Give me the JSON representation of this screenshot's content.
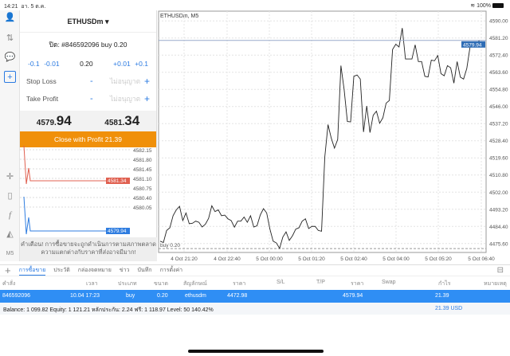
{
  "status_bar": {
    "time": "14:21",
    "date": "อา. 5 ต.ค.",
    "battery": "100%"
  },
  "order_panel": {
    "symbol": "ETHUSDm ▾",
    "order_title": "ปิด: #846592096 buy 0.20",
    "volume": {
      "minus_01": "-0.1",
      "minus_001": "-0.01",
      "value": "0.20",
      "plus_001": "+0.01",
      "plus_01": "+0.1"
    },
    "stop_loss": {
      "label": "Stop Loss",
      "minus": "-",
      "value": "ไม่อนุญาต",
      "plus": "+"
    },
    "take_profit": {
      "label": "Take Profit",
      "minus": "-",
      "value": "ไม่อนุญาต",
      "plus": "+"
    },
    "bid": {
      "main": "4579.",
      "big": "94"
    },
    "ask": {
      "main": "4581.",
      "big": "34"
    },
    "close_button": "Close with Profit 21.39",
    "tick_chart": {
      "axis": [
        "4582.15",
        "4581.80",
        "4581.45",
        "4581.10",
        "4580.75",
        "4580.40",
        "4580.05"
      ],
      "ask_label": "4581.34",
      "bid_label": "4579.94",
      "ask_color": "#e06050",
      "bid_color": "#2f7de0"
    },
    "warning": "คำเตือน! การซื้อขายจะถูกดำเนินการตามสภาพตลาด ความแตกต่างกับราคาที่ส่งอาจมีมาก!"
  },
  "left_toolbar": {
    "timeframe": "M5"
  },
  "chart_data": {
    "type": "line",
    "title": "ETHUSDm, M5",
    "ylim": [
      4471,
      4595
    ],
    "y_ticks": [
      "4590.00",
      "4581.20",
      "4572.40",
      "4563.60",
      "4554.80",
      "4546.00",
      "4537.20",
      "4528.40",
      "4519.60",
      "4510.80",
      "4502.00",
      "4493.20",
      "4484.40",
      "4475.60"
    ],
    "x_ticks": [
      "4 Oct 21:20",
      "4 Oct 22:40",
      "5 Oct 00:00",
      "5 Oct 01:20",
      "5 Oct 02:40",
      "5 Oct 04:00",
      "5 Oct 05:20",
      "5 Oct 06:40"
    ],
    "current_price": "4579.94",
    "buy_line": {
      "label": "buy 0.20",
      "price": 4472.98
    },
    "values": [
      4476.8,
      4476.1,
      4482.3,
      4483.7,
      4489.9,
      4492.9,
      4494.7,
      4487.4,
      4491.3,
      4485.8,
      4486.0,
      4487.1,
      4486.5,
      4484.1,
      4485.5,
      4488.5,
      4495.0,
      4492.0,
      4492.9,
      4489.9,
      4490.2,
      4488.3,
      4487.4,
      4484.0,
      4487.1,
      4487.1,
      4489.2,
      4486.5,
      4489.9,
      4484.1,
      4484.7,
      4490.2,
      4493.5,
      4491.3,
      4483.0,
      4476.8,
      4475.9,
      4473.1,
      4478.9,
      4481.6,
      4477.2,
      4479.6,
      4483.0,
      4483.7,
      4487.1,
      4488.3,
      4483.3,
      4484.4,
      4484.4,
      4482.3,
      4481.9,
      4520.0,
      4536.7,
      4529.8,
      4524.6,
      4529.1,
      4567.0,
      4554.6,
      4538.3,
      4538.1,
      4561.5,
      4562.2,
      4560.1,
      4532.9,
      4546.3,
      4532.6,
      4541.5,
      4543.6,
      4537.4,
      4540.2,
      4547.7,
      4549.1,
      4575.3,
      4578.0,
      4576.6,
      4586.3,
      4570.4,
      4570.4,
      4570.4,
      4577.7,
      4569.1,
      4569.1,
      4561.5,
      4561.2,
      4569.8,
      4569.5,
      4572.2,
      4562.9,
      4561.8,
      4567.0,
      4565.9,
      4558.0,
      4569.1,
      4561.1,
      4560.1,
      4565.6,
      4576.6,
      4578.0,
      4578.3,
      4580.1
    ]
  },
  "tabs": [
    "การซื้อขาย",
    "ประวัติ",
    "กล่องจดหมาย",
    "ข่าว",
    "บันทึก",
    "การตั้งค่า"
  ],
  "table": {
    "headers": [
      "คำสั่ง",
      "เวลา",
      "ประเภท",
      "ขนาด",
      "สัญลักษณ์",
      "ราคา",
      "S/L",
      "T/P",
      "ราคา",
      "Swap",
      "กำไร",
      "หมายเหตุ"
    ],
    "rows": [
      [
        "846592096",
        "10.04 17:23",
        "buy",
        "0.20",
        "ethusdm",
        "4472.98",
        "",
        "",
        "4579.94",
        "",
        "21.39",
        ""
      ]
    ]
  },
  "balance": {
    "text": "Balance: 1 099.82 Equity: 1 121.21 หลักประกัน: 2.24 ฟรี: 1 118.97 Level: 50 140.42%",
    "profit": "21.39  USD"
  }
}
